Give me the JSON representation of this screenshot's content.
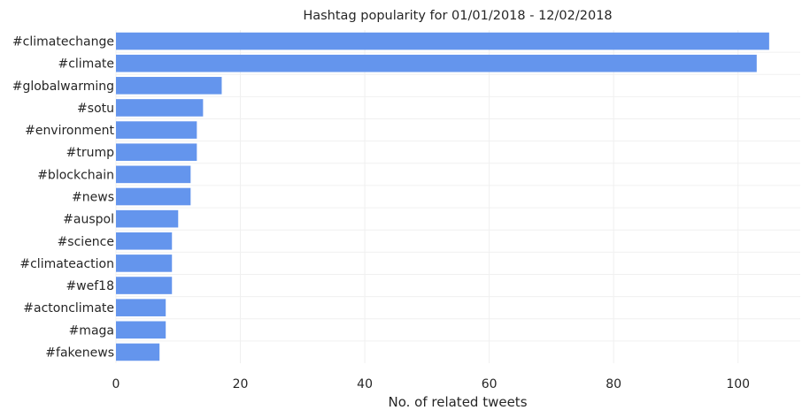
{
  "chart_data": {
    "type": "bar",
    "orientation": "horizontal",
    "title": "Hashtag popularity for 01/01/2018 - 12/02/2018",
    "xlabel": "No. of related tweets",
    "ylabel": "",
    "categories": [
      "#climatechange",
      "#climate",
      "#globalwarming",
      "#sotu",
      "#environment",
      "#trump",
      "#blockchain",
      "#news",
      "#auspol",
      "#science",
      "#climateaction",
      "#wef18",
      "#actonclimate",
      "#maga",
      "#fakenews"
    ],
    "values": [
      105,
      103,
      17,
      14,
      13,
      13,
      12,
      12,
      10,
      9,
      9,
      9,
      8,
      8,
      7
    ],
    "xlim": [
      0,
      110
    ],
    "xticks": [
      0,
      20,
      40,
      60,
      80,
      100
    ],
    "grid": true,
    "bar_color": "#6495ed"
  }
}
